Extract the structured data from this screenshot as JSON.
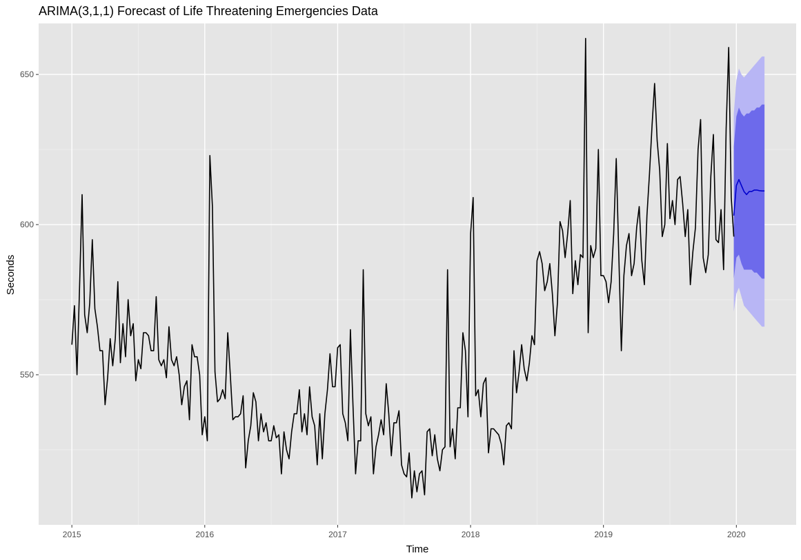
{
  "chart_data": {
    "type": "line",
    "title": "ARIMA(3,1,1) Forecast of Life Threatening Emergencies Data",
    "xlabel": "Time",
    "ylabel": "Seconds",
    "xlim": [
      2014.75,
      2020.45
    ],
    "ylim": [
      500,
      667
    ],
    "x_ticks": [
      2015,
      2016,
      2017,
      2018,
      2019,
      2020
    ],
    "x_tick_labels": [
      "2015",
      "2016",
      "2017",
      "2018",
      "2019",
      "2020"
    ],
    "y_ticks": [
      550,
      600,
      650
    ],
    "y_tick_labels": [
      "550",
      "600",
      "650"
    ],
    "grid": true,
    "legend": "none",
    "colors": {
      "panel_bg": "#e5e5e5",
      "grid_major": "#ffffff",
      "grid_minor": "#f0f0f0",
      "observed_line": "#000000",
      "forecast_line": "#0000cc",
      "interval_80": "#6d6aeb",
      "interval_95": "#b8b6f5"
    },
    "series": [
      {
        "role": "observed",
        "x_start": 2015,
        "step": 0.0192308,
        "values": [
          560,
          573,
          550,
          579,
          610,
          570,
          564,
          574,
          595,
          572,
          566,
          558,
          558,
          540,
          549,
          562,
          553,
          562,
          581,
          554,
          567,
          556,
          575,
          563,
          567,
          548,
          555,
          552,
          564,
          564,
          563,
          558,
          558,
          576,
          555,
          553,
          555,
          549,
          566,
          555,
          553,
          556,
          550,
          540,
          546,
          548,
          535,
          560,
          556,
          556,
          550,
          530,
          536,
          528,
          623,
          606,
          551,
          541,
          542,
          545,
          542,
          564,
          550,
          535,
          536,
          536,
          537,
          543,
          519,
          528,
          533,
          544,
          541,
          528,
          537,
          531,
          534,
          528,
          528,
          533,
          529,
          530,
          517,
          531,
          525,
          522,
          531,
          537,
          537,
          545,
          531,
          537,
          530,
          546,
          536,
          533,
          520,
          537,
          522,
          537,
          545,
          557,
          546,
          546,
          559,
          560,
          537,
          534,
          528,
          565,
          540,
          517,
          528,
          528,
          585,
          537,
          533,
          536,
          517,
          526,
          530,
          535,
          530,
          547,
          537,
          523,
          534,
          534,
          538,
          520,
          517,
          516,
          524,
          509,
          518,
          511,
          517,
          518,
          510,
          531,
          532,
          523,
          530,
          522,
          518,
          525,
          526,
          585,
          526,
          532,
          522,
          539,
          539,
          564,
          558,
          536,
          597,
          609,
          543,
          545,
          536,
          547,
          549,
          524,
          532,
          532,
          531,
          530,
          527,
          520,
          533,
          534,
          532,
          558,
          544,
          551,
          560,
          552,
          548,
          554,
          563,
          560,
          588,
          591,
          587,
          578,
          581,
          587,
          577,
          563,
          574,
          601,
          598,
          589,
          597,
          608,
          577,
          588,
          580,
          590,
          589,
          662,
          564,
          593,
          589,
          592,
          625,
          583,
          583,
          581,
          574,
          581,
          597,
          622,
          590,
          558,
          583,
          593,
          597,
          583,
          587,
          599,
          606,
          588,
          580,
          603,
          617,
          633,
          647,
          628,
          618,
          596,
          600,
          627,
          602,
          608,
          600,
          615,
          616,
          607,
          596,
          605,
          580,
          591,
          599,
          625,
          635,
          589,
          584,
          590,
          616,
          630,
          595,
          594,
          605,
          585,
          632,
          659,
          609,
          596
        ]
      },
      {
        "role": "forecast",
        "x": [
          2019.9808,
          2020.0,
          2020.0192,
          2020.0385,
          2020.0577,
          2020.0769,
          2020.0962,
          2020.1154,
          2020.1346,
          2020.1538,
          2020.1731,
          2020.1923,
          2020.2115
        ],
        "mean": [
          603,
          613,
          615,
          613,
          611,
          610,
          611,
          611,
          611.5,
          611.5,
          611.3,
          611.2,
          611.2
        ],
        "lo80": [
          582,
          589,
          590,
          587,
          585,
          585,
          585,
          585,
          584,
          584,
          583,
          582,
          582
        ],
        "hi80": [
          626,
          636,
          639,
          637,
          636,
          637,
          637,
          638,
          638,
          639,
          639,
          640,
          640
        ],
        "lo95": [
          571,
          577,
          579,
          576,
          573,
          572,
          571,
          570,
          569,
          568,
          567,
          566,
          566
        ],
        "hi95": [
          637,
          648,
          652,
          650,
          649,
          650,
          651,
          652,
          653,
          654,
          655,
          656,
          656
        ]
      }
    ]
  }
}
